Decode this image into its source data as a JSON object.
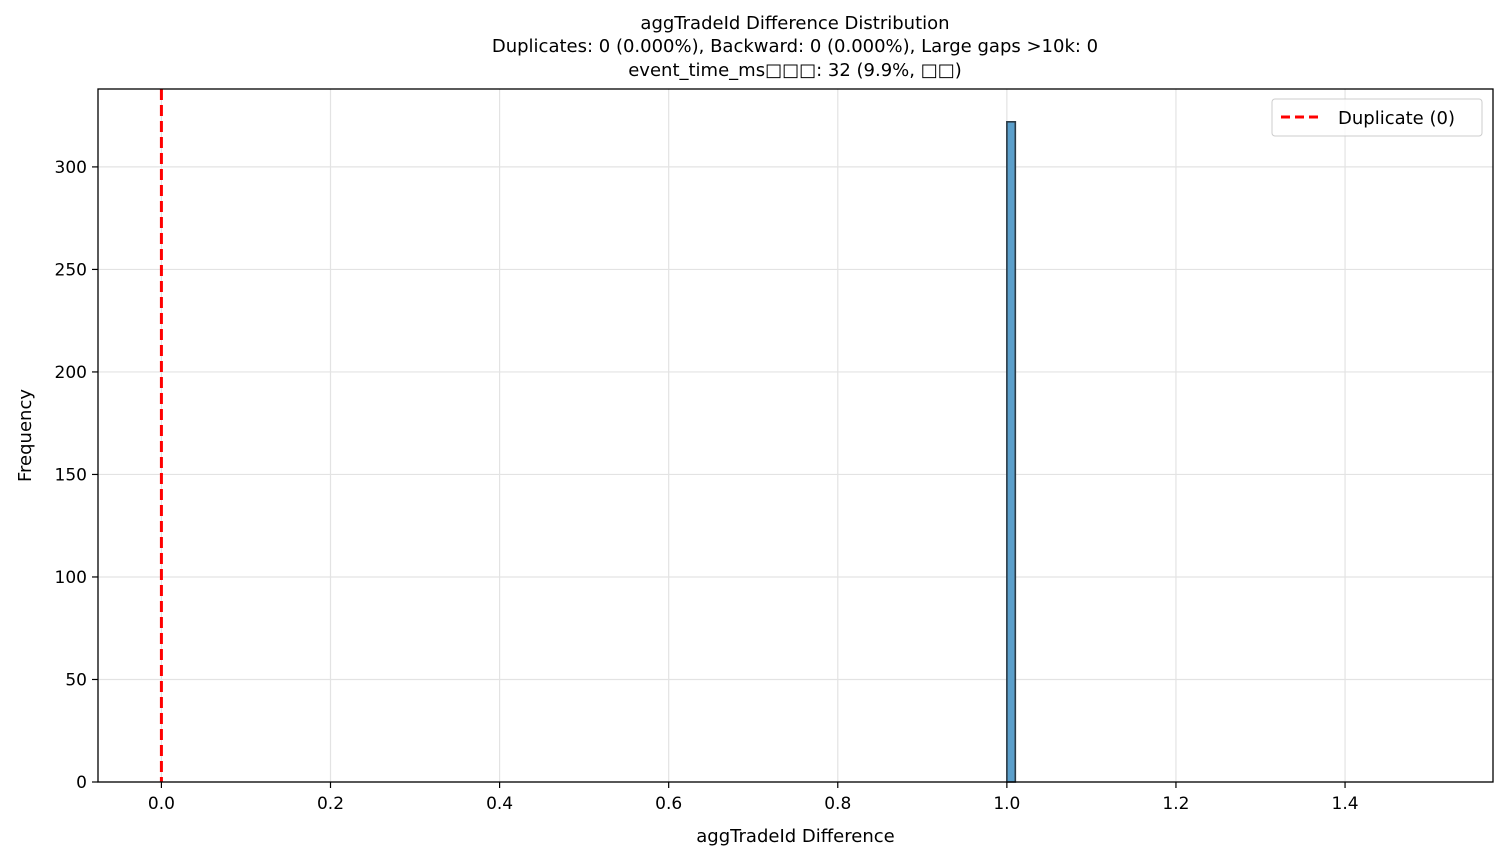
{
  "chart_data": {
    "type": "bar",
    "title_lines": [
      "aggTradeId Difference Distribution",
      "Duplicates: 0 (0.000%), Backward: 0 (0.000%), Large gaps >10k: 0",
      "event_time_ms□□□: 32 (9.9%, □□)"
    ],
    "xlabel": "aggTradeId Difference",
    "ylabel": "Frequency",
    "xlim": [
      -0.075,
      1.575
    ],
    "ylim": [
      0,
      338
    ],
    "x_ticks": [
      0.0,
      0.2,
      0.4,
      0.6,
      0.8,
      1.0,
      1.2,
      1.4
    ],
    "x_tick_labels": [
      "0.0",
      "0.2",
      "0.4",
      "0.6",
      "0.8",
      "1.0",
      "1.2",
      "1.4"
    ],
    "y_ticks": [
      0,
      50,
      100,
      150,
      200,
      250,
      300
    ],
    "y_tick_labels": [
      "0",
      "50",
      "100",
      "150",
      "200",
      "250",
      "300"
    ],
    "grid": true,
    "bars": [
      {
        "x_start": 1.0,
        "x_end": 1.01,
        "value": 322
      }
    ],
    "bar_color": "#5b9fcb",
    "bar_edge_color": "#2b3a45",
    "reference_line": {
      "x": 0,
      "color": "#ff0000",
      "style": "dashed"
    },
    "legend": {
      "placement": "top-right",
      "entries": [
        {
          "label": "Duplicate (0)",
          "color": "#ff0000",
          "style": "dashed"
        }
      ]
    }
  }
}
